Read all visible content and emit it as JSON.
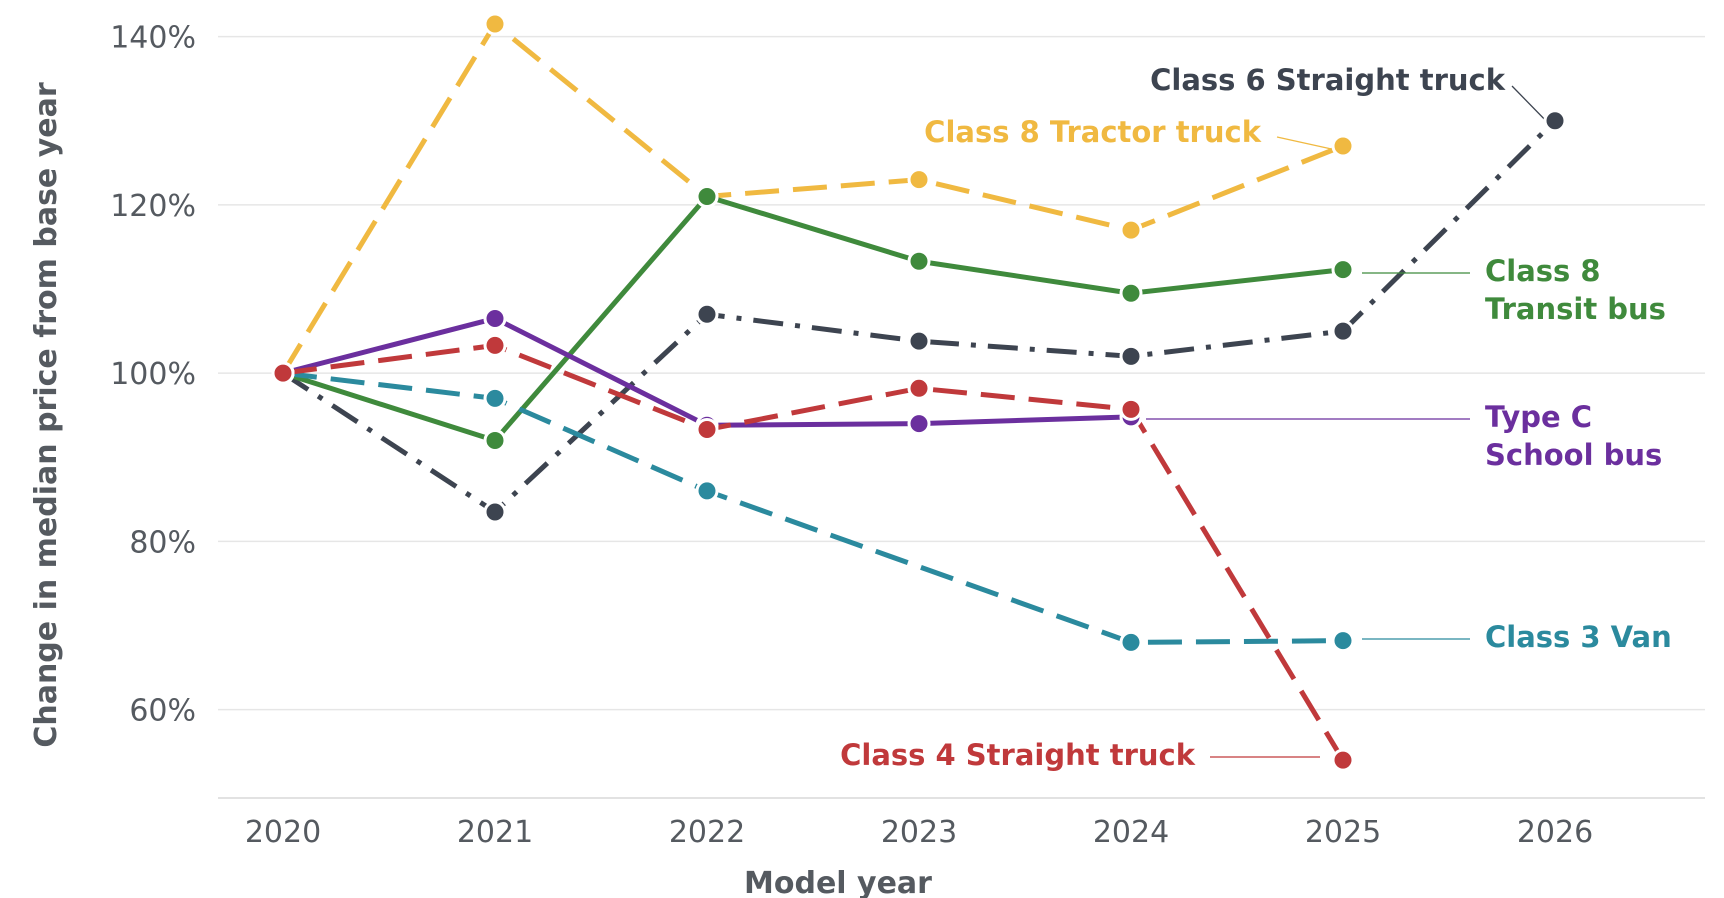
{
  "chart_data": {
    "type": "line",
    "title": "",
    "xlabel": "Model year",
    "ylabel": "Change in median price from base year",
    "x": [
      "2020",
      "2021",
      "2022",
      "2023",
      "2024",
      "2025",
      "2026"
    ],
    "y_ticks": [
      "60%",
      "80%",
      "100%",
      "120%",
      "140%"
    ],
    "y_tick_values": [
      60,
      80,
      100,
      120,
      140
    ],
    "ylim": [
      49.5,
      141.5
    ],
    "grid": true,
    "legend": "direct-labels",
    "series": [
      {
        "name": "Class 6 Straight truck",
        "label_lines": [
          "Class 6 Straight truck"
        ],
        "color": "#3d4450",
        "dash": "dashdot",
        "values": [
          100,
          83.5,
          107,
          103.8,
          102,
          105,
          130
        ]
      },
      {
        "name": "Class 8 Tractor truck",
        "label_lines": [
          "Class 8 Tractor truck"
        ],
        "color": "#f0b941",
        "dash": "dashed",
        "values": [
          100,
          141.5,
          121,
          123,
          117,
          127,
          null
        ]
      },
      {
        "name": "Class 8 Transit bus",
        "label_lines": [
          "Class 8",
          "Transit bus"
        ],
        "color": "#3f8a3c",
        "dash": "solid",
        "values": [
          100,
          92,
          121,
          113.3,
          109.5,
          112.3,
          null
        ]
      },
      {
        "name": "Type C School bus",
        "label_lines": [
          "Type C",
          "School bus"
        ],
        "color": "#6b2f9e",
        "dash": "solid",
        "values": [
          100,
          106.5,
          93.8,
          94,
          94.8,
          null,
          null
        ]
      },
      {
        "name": "Class 3 Van",
        "label_lines": [
          "Class 3 Van"
        ],
        "color": "#2b8a9e",
        "dash": "dashed",
        "values": [
          100,
          97,
          86,
          null,
          68,
          68.2,
          null
        ]
      },
      {
        "name": "Class 4 Straight truck",
        "label_lines": [
          "Class 4 Straight truck"
        ],
        "color": "#c0393b",
        "dash": "dashed",
        "values": [
          100,
          103.3,
          93.3,
          98.2,
          95.7,
          54,
          null
        ]
      }
    ]
  }
}
